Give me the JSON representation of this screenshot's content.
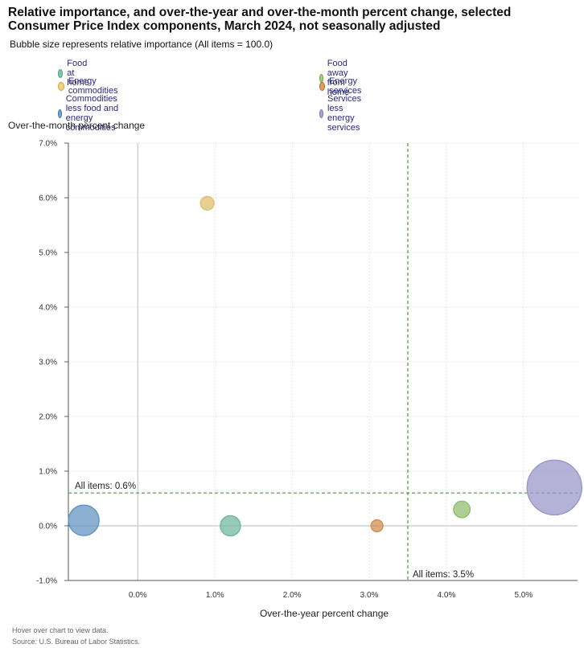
{
  "title": "Relative importance, and over-the-year and over-the-month percent change, selected Consumer Price Index components, March 2024, not seasonally adjusted",
  "subtitle": "Bubble size represents relative importance (All items = 100.0)",
  "footer": {
    "hover_note": "Hover over chart to view data.",
    "source": "Source: U.S. Bureau of Labor Statistics."
  },
  "chart_data": {
    "type": "scatter",
    "xlabel": "Over-the-year percent change",
    "ylabel": "Over-the-month percent change",
    "xlim": [
      -0.9,
      5.7
    ],
    "ylim": [
      -1.0,
      7.0
    ],
    "x_ticks": [
      0,
      1,
      2,
      3,
      4,
      5
    ],
    "x_tick_labels": [
      "0.0%",
      "1.0%",
      "2.0%",
      "3.0%",
      "4.0%",
      "5.0%"
    ],
    "y_ticks": [
      -1,
      0,
      1,
      2,
      3,
      4,
      5,
      6,
      7
    ],
    "y_tick_labels": [
      "-1.0%",
      "0.0%",
      "1.0%",
      "2.0%",
      "3.0%",
      "4.0%",
      "5.0%",
      "6.0%",
      "7.0%"
    ],
    "grid": "dotted",
    "legend_position": "top",
    "reference_lines": [
      {
        "axis": "y",
        "value": 0.6,
        "label": "All items: 0.6%"
      },
      {
        "axis": "x",
        "value": 3.5,
        "label": "All items: 3.5%"
      }
    ],
    "series": [
      {
        "name": "Food at home",
        "x": 1.2,
        "y": 0.0,
        "weight": 8.2,
        "color": "#7cc8b0"
      },
      {
        "name": "Food away from home",
        "x": 4.2,
        "y": 0.3,
        "weight": 5.5,
        "color": "#9fcf7c"
      },
      {
        "name": "Energy commodities",
        "x": 0.9,
        "y": 5.9,
        "weight": 3.7,
        "color": "#f2d27a"
      },
      {
        "name": "Energy services",
        "x": 3.1,
        "y": 0.0,
        "weight": 2.9,
        "color": "#e59a5c"
      },
      {
        "name": "Commodities less food and energy commodities",
        "x": -0.7,
        "y": 0.1,
        "weight": 18.9,
        "color": "#6fa3d4"
      },
      {
        "name": "Services less energy services",
        "x": 5.4,
        "y": 0.7,
        "weight": 60.9,
        "color": "#a9a6dc"
      }
    ]
  }
}
